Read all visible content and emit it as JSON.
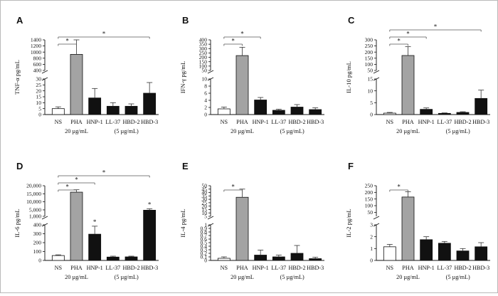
{
  "chart_data": [
    {
      "panel": "A",
      "type": "bar",
      "ylabel": "TNF-α pg/mL",
      "categories": [
        "NS",
        "PHA",
        "HNP-1",
        "LL-37",
        "HBD-2",
        "HBD-3"
      ],
      "values": [
        5,
        925,
        14,
        7,
        7,
        18
      ],
      "errors": [
        1.5,
        475,
        8,
        3,
        2,
        9
      ],
      "bar_colors": [
        "#ffffff",
        "#a3a3a3",
        "#111111",
        "#111111",
        "#111111",
        "#111111"
      ],
      "axis_break": {
        "lower": [
          0,
          30
        ],
        "upper": [
          400,
          1400
        ],
        "lower_ticks": [
          0,
          5,
          10,
          15,
          20,
          25,
          30
        ],
        "upper_ticks": [
          400,
          600,
          800,
          1000,
          1200,
          1400
        ]
      },
      "significance": [
        {
          "from": "NS",
          "to": "PHA",
          "label": "*"
        },
        {
          "from": "NS",
          "to": "HBD-3",
          "label": "*"
        }
      ],
      "bar_stars": [],
      "notes": {
        "pha": "20 µg/mL",
        "peptides": "(5 µg/mL)"
      }
    },
    {
      "panel": "B",
      "type": "bar",
      "ylabel": "IFN-γ pg/mL",
      "categories": [
        "NS",
        "PHA",
        "HNP-1",
        "LL-37",
        "HBD-2",
        "HBD-3"
      ],
      "values": [
        1.6,
        220,
        4.1,
        1.2,
        2.1,
        1.4
      ],
      "errors": [
        0.5,
        95,
        0.7,
        0.3,
        0.7,
        0.5
      ],
      "bar_colors": [
        "#ffffff",
        "#a3a3a3",
        "#111111",
        "#111111",
        "#111111",
        "#111111"
      ],
      "axis_break": {
        "lower": [
          0,
          10
        ],
        "upper": [
          50,
          400
        ],
        "lower_ticks": [
          0,
          2,
          4,
          6,
          8,
          10
        ],
        "upper_ticks": [
          50,
          100,
          150,
          200,
          250,
          300,
          350,
          400
        ]
      },
      "significance": [
        {
          "from": "NS",
          "to": "PHA",
          "label": "*"
        },
        {
          "from": "NS",
          "to": "HNP-1",
          "label": "*"
        }
      ],
      "bar_stars": [],
      "notes": {
        "pha": "20 µg/mL",
        "peptides": "(5 µg/mL)"
      }
    },
    {
      "panel": "C",
      "type": "bar",
      "ylabel": "IL-10 pg/mL",
      "categories": [
        "NS",
        "PHA",
        "HNP-1",
        "LL-37",
        "HBD-2",
        "HBD-3"
      ],
      "values": [
        0.6,
        172,
        2.2,
        0.5,
        0.9,
        6.8
      ],
      "errors": [
        0.3,
        72,
        0.6,
        0.2,
        0.3,
        3.5
      ],
      "bar_colors": [
        "#ffffff",
        "#a3a3a3",
        "#111111",
        "#111111",
        "#111111",
        "#111111"
      ],
      "axis_break": {
        "lower": [
          0,
          15
        ],
        "upper": [
          50,
          300
        ],
        "lower_ticks": [
          0,
          5,
          10,
          15
        ],
        "upper_ticks": [
          50,
          100,
          150,
          200,
          250,
          300
        ]
      },
      "significance": [
        {
          "from": "NS",
          "to": "PHA",
          "label": "*"
        },
        {
          "from": "NS",
          "to": "HNP-1",
          "label": "*"
        },
        {
          "from": "NS",
          "to": "HBD-3",
          "label": "*"
        }
      ],
      "bar_stars": [],
      "notes": {
        "pha": "20 µg/mL",
        "peptides": "(5 µg/mL)"
      }
    },
    {
      "panel": "D",
      "type": "bar",
      "ylabel": "IL-6 pg/mL",
      "categories": [
        "NS",
        "PHA",
        "HNP-1",
        "LL-37",
        "HBD-2",
        "HBD-3"
      ],
      "values": [
        55,
        16000,
        295,
        38,
        40,
        4800
      ],
      "errors": [
        8,
        1500,
        90,
        10,
        8,
        900
      ],
      "bar_colors": [
        "#ffffff",
        "#a3a3a3",
        "#111111",
        "#111111",
        "#111111",
        "#111111"
      ],
      "axis_break": {
        "lower": [
          0,
          400
        ],
        "upper": [
          1000,
          20000
        ],
        "lower_ticks": [
          0,
          100,
          200,
          300,
          400
        ],
        "upper_ticks": [
          1000,
          5000,
          10000,
          15000,
          20000
        ],
        "upper_tick_labels": [
          "1,000",
          "5,000",
          "10,000",
          "15,000",
          "20,000"
        ]
      },
      "significance": [
        {
          "from": "NS",
          "to": "PHA",
          "label": "*"
        },
        {
          "from": "NS",
          "to": "HNP-1",
          "label": "*"
        },
        {
          "from": "NS",
          "to": "HBD-3",
          "label": "*"
        }
      ],
      "bar_stars": [
        "HNP-1",
        "HBD-3"
      ],
      "notes": {
        "pha": "20 µg/mL",
        "peptides": "(5 µg/mL)"
      }
    },
    {
      "panel": "E",
      "type": "bar",
      "ylabel": "IL-4 pg/mL",
      "categories": [
        "NS",
        "PHA",
        "HNP-1",
        "LL-37",
        "HBD-2",
        "HBD-3"
      ],
      "values": [
        0.06,
        33,
        0.15,
        0.1,
        0.2,
        0.05
      ],
      "errors": [
        0.04,
        12,
        0.14,
        0.05,
        0.22,
        0.04
      ],
      "bar_colors": [
        "#ffffff",
        "#a3a3a3",
        "#111111",
        "#111111",
        "#111111",
        "#111111"
      ],
      "axis_break": {
        "lower": [
          0,
          1
        ],
        "upper": [
          5,
          50
        ],
        "lower_ticks": [
          0,
          0.1,
          0.2,
          0.3,
          0.4,
          0.5,
          0.6,
          0.7,
          0.8,
          0.9,
          1
        ],
        "lower_tick_labels": [
          "0",
          "0.1",
          "0.2",
          "0.3",
          "0.4",
          "0.5",
          "0.6",
          "0.7",
          "0.8",
          "0.9",
          "1"
        ],
        "upper_ticks": [
          5,
          10,
          15,
          20,
          25,
          30,
          35,
          40,
          45,
          50
        ]
      },
      "significance": [
        {
          "from": "NS",
          "to": "PHA",
          "label": "*"
        }
      ],
      "bar_stars": [],
      "notes": {
        "pha": "20 µg/mL",
        "peptides": "(5 µg/mL)"
      }
    },
    {
      "panel": "F",
      "type": "bar",
      "ylabel": "IL-2 pg/mL",
      "categories": [
        "NS",
        "PHA",
        "HNP-1",
        "LL-37",
        "HBD-2",
        "HBD-3"
      ],
      "values": [
        1.15,
        165,
        1.75,
        1.45,
        0.8,
        1.15
      ],
      "errors": [
        0.2,
        40,
        0.25,
        0.15,
        0.2,
        0.35
      ],
      "bar_colors": [
        "#ffffff",
        "#a3a3a3",
        "#111111",
        "#111111",
        "#111111",
        "#111111"
      ],
      "axis_break": {
        "lower": [
          0,
          3
        ],
        "upper": [
          20,
          250
        ],
        "lower_ticks": [
          0,
          1,
          2,
          3
        ],
        "upper_ticks": [
          50,
          100,
          150,
          200,
          250
        ]
      },
      "significance": [
        {
          "from": "NS",
          "to": "PHA",
          "label": "*"
        }
      ],
      "bar_stars": [],
      "notes": {
        "pha": "20 µg/mL",
        "peptides": "(5 µg/mL)"
      }
    }
  ]
}
